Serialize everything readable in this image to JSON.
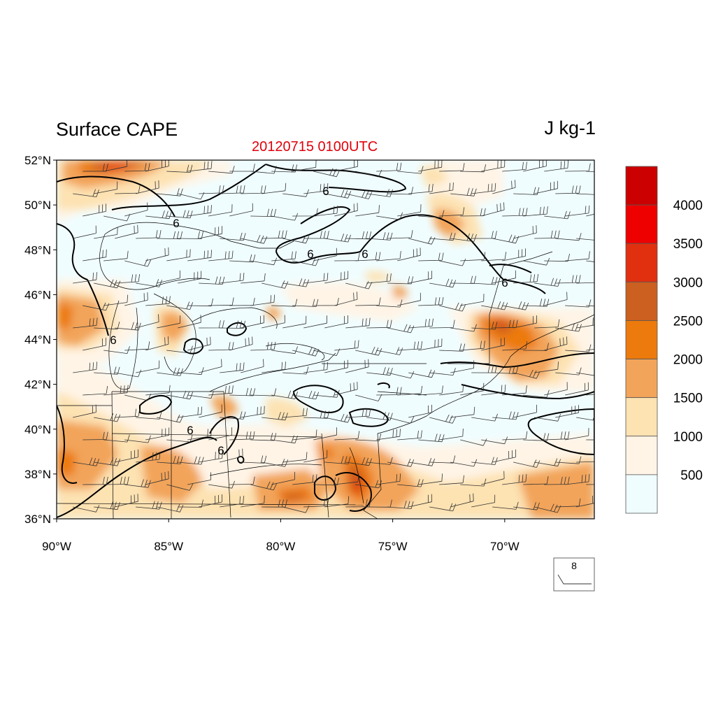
{
  "title": "Surface CAPE",
  "units": "J kg-1",
  "subtitle": "20120715 0100UTC",
  "colors": {
    "title_subtitle": "#e0000a",
    "contour": "#000000",
    "barbs": "#333333"
  },
  "map": {
    "lat_ticks": [
      "36°N",
      "38°N",
      "40°N",
      "42°N",
      "44°N",
      "46°N",
      "48°N",
      "50°N",
      "52°N"
    ],
    "lon_ticks": [
      "90°W",
      "85°W",
      "80°W",
      "75°W",
      "70°W"
    ],
    "contour_label": "6",
    "domain": {
      "lon_min": -90,
      "lon_max": -66,
      "lat_min": 36,
      "lat_max": 52
    }
  },
  "colorbar": {
    "labels": [
      "500",
      "1000",
      "1500",
      "2000",
      "2500",
      "3000",
      "3500",
      "4000"
    ],
    "colors": [
      "#f0fdff",
      "#fff4e6",
      "#fde2b2",
      "#f2a45a",
      "#ec7a0c",
      "#cc6020",
      "#e03010",
      "#ee0000",
      "#cc0000"
    ]
  },
  "reference_vector": {
    "label": "8"
  }
}
